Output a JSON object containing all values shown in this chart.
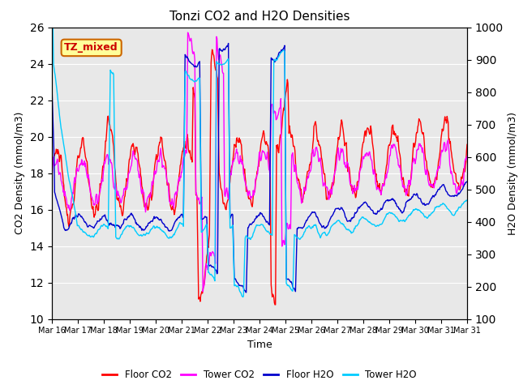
{
  "title": "Tonzi CO2 and H2O Densities",
  "xlabel": "Time",
  "ylabel_left": "CO2 Density (mmol/m3)",
  "ylabel_right": "H2O Density (mmol/m3)",
  "ylim_left": [
    10,
    26
  ],
  "ylim_right": [
    100,
    1000
  ],
  "yticks_left": [
    10,
    12,
    14,
    16,
    18,
    20,
    22,
    24,
    26
  ],
  "yticks_right": [
    100,
    200,
    300,
    400,
    500,
    600,
    700,
    800,
    900,
    1000
  ],
  "days": 16,
  "pts_per_day": 48,
  "xtick_labels": [
    "Mar 16",
    "Mar 17",
    "Mar 18",
    "Mar 19",
    "Mar 20",
    "Mar 21",
    "Mar 22",
    "Mar 23",
    "Mar 24",
    "Mar 25",
    "Mar 26",
    "Mar 27",
    "Mar 28",
    "Mar 29",
    "Mar 30",
    "Mar 31"
  ],
  "annotation_text": "TZ_mixed",
  "annotation_color": "#cc0000",
  "annotation_bg": "#ffff99",
  "annotation_border": "#cc6600",
  "color_floor_co2": "#ff0000",
  "color_tower_co2": "#ff00ff",
  "color_floor_h2o": "#0000cc",
  "color_tower_h2o": "#00ccff",
  "legend_labels": [
    "Floor CO2",
    "Tower CO2",
    "Floor H2O",
    "Tower H2O"
  ],
  "bg_color": "#e8e8e8",
  "linewidth": 1.0
}
